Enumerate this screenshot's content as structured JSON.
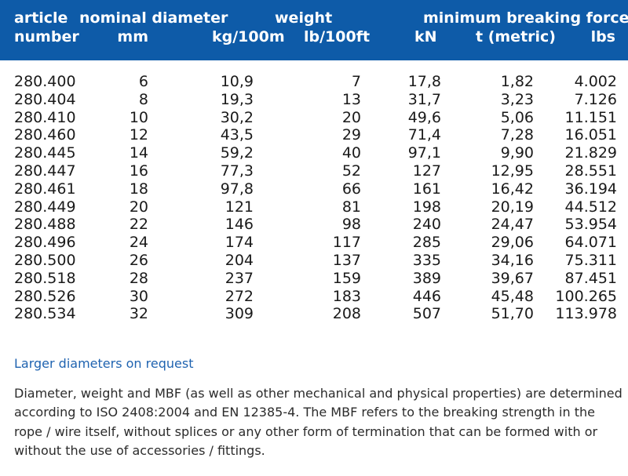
{
  "header": {
    "article_top": "article",
    "article_bottom": "number",
    "diameter_top": "nominal diameter",
    "diameter_unit": "mm",
    "weight_top": "weight",
    "weight_unit_kg": "kg/100m",
    "weight_unit_lb": "lb/100ft",
    "mbf_top": "minimum breaking force",
    "mbf_unit_kn": "kN",
    "mbf_unit_t": "t (metric)",
    "mbf_unit_lbs": "lbs"
  },
  "rows": [
    {
      "article": "280.400",
      "mm": "6",
      "kg": "10,9",
      "lb": "7",
      "kn": "17,8",
      "t": "1,82",
      "lbs": "4.002"
    },
    {
      "article": "280.404",
      "mm": "8",
      "kg": "19,3",
      "lb": "13",
      "kn": "31,7",
      "t": "3,23",
      "lbs": "7.126"
    },
    {
      "article": "280.410",
      "mm": "10",
      "kg": "30,2",
      "lb": "20",
      "kn": "49,6",
      "t": "5,06",
      "lbs": "11.151"
    },
    {
      "article": "280.460",
      "mm": "12",
      "kg": "43,5",
      "lb": "29",
      "kn": "71,4",
      "t": "7,28",
      "lbs": "16.051"
    },
    {
      "article": "280.445",
      "mm": "14",
      "kg": "59,2",
      "lb": "40",
      "kn": "97,1",
      "t": "9,90",
      "lbs": "21.829"
    },
    {
      "article": "280.447",
      "mm": "16",
      "kg": "77,3",
      "lb": "52",
      "kn": "127",
      "t": "12,95",
      "lbs": "28.551"
    },
    {
      "article": "280.461",
      "mm": "18",
      "kg": "97,8",
      "lb": "66",
      "kn": "161",
      "t": "16,42",
      "lbs": "36.194"
    },
    {
      "article": "280.449",
      "mm": "20",
      "kg": "121",
      "lb": "81",
      "kn": "198",
      "t": "20,19",
      "lbs": "44.512"
    },
    {
      "article": "280.488",
      "mm": "22",
      "kg": "146",
      "lb": "98",
      "kn": "240",
      "t": "24,47",
      "lbs": "53.954"
    },
    {
      "article": "280.496",
      "mm": "24",
      "kg": "174",
      "lb": "117",
      "kn": "285",
      "t": "29,06",
      "lbs": "64.071"
    },
    {
      "article": "280.500",
      "mm": "26",
      "kg": "204",
      "lb": "137",
      "kn": "335",
      "t": "34,16",
      "lbs": "75.311"
    },
    {
      "article": "280.518",
      "mm": "28",
      "kg": "237",
      "lb": "159",
      "kn": "389",
      "t": "39,67",
      "lbs": "87.451"
    },
    {
      "article": "280.526",
      "mm": "30",
      "kg": "272",
      "lb": "183",
      "kn": "446",
      "t": "45,48",
      "lbs": "100.265"
    },
    {
      "article": "280.534",
      "mm": "32",
      "kg": "309",
      "lb": "208",
      "kn": "507",
      "t": "51,70",
      "lbs": "113.978"
    }
  ],
  "note": "Larger diameters on request",
  "description": "Diameter, weight and MBF (as well as other mechanical and physical properties) are determined according to ISO 2408:2004 and EN 12385-4. The MBF refers to the breaking strength in the rope / wire itself, without splices or any other form of termination that can be formed with or without the use of accessories / fittings.",
  "colors": {
    "header_bg": "#0e5ba8",
    "header_text": "#ffffff",
    "note_text": "#1f63b0",
    "body_text": "#1a1a1a"
  }
}
